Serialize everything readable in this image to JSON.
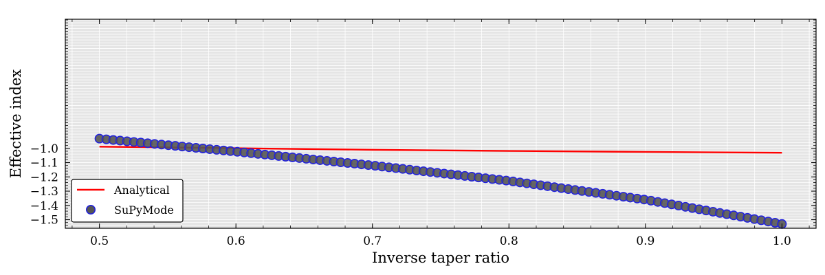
{
  "chart_data": {
    "type": "line",
    "xlabel": "Inverse taper ratio",
    "ylabel": "Effective index",
    "xlim": [
      0.475,
      1.025
    ],
    "ylim": [
      -1.56,
      -0.095
    ],
    "x_ticks": [
      0.5,
      0.6,
      0.7,
      0.8,
      0.9,
      1.0
    ],
    "x_tick_labels": [
      "0.5",
      "0.6",
      "0.7",
      "0.8",
      "0.9",
      "1.0"
    ],
    "y_ticks": [
      -1.0,
      -1.1,
      -1.2,
      -1.3,
      -1.4,
      -1.5
    ],
    "y_tick_labels": [
      "−1.0",
      "−1.1",
      "−1.2",
      "−1.3",
      "−1.4",
      "−1.5"
    ],
    "grid": true,
    "legend_position": "lower-left",
    "series": [
      {
        "name": "Analytical",
        "kind": "line",
        "color": "#ff0000",
        "x": [
          0.5,
          0.6,
          0.7,
          0.8,
          0.9,
          1.0
        ],
        "y": [
          -0.988,
          -0.999,
          -1.01,
          -1.018,
          -1.025,
          -1.031
        ]
      },
      {
        "name": "SuPyMode",
        "kind": "scatter",
        "color": "#555555",
        "edge_color": "#2222dd",
        "x_start": 0.5,
        "x_end": 1.0,
        "count": 100,
        "y_anchor_x": [
          0.5,
          0.6,
          0.7,
          0.8,
          0.9,
          1.0
        ],
        "y_anchor_y": [
          -0.932,
          -1.023,
          -1.12,
          -1.228,
          -1.36,
          -1.53
        ]
      }
    ]
  }
}
